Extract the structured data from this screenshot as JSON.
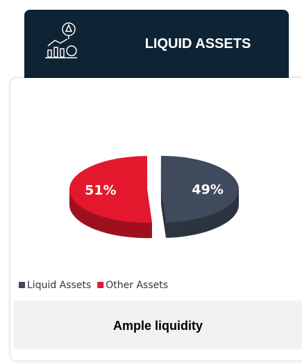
{
  "header": {
    "title": "LIQUID ASSETS"
  },
  "chart_data": {
    "type": "pie",
    "categories": [
      "Liquid Assets",
      "Other Assets"
    ],
    "values": [
      49,
      51
    ],
    "value_labels": [
      "49%",
      "51%"
    ],
    "colors": [
      "#3f4a5c",
      "#e3182c"
    ]
  },
  "footer": {
    "text": "Ample liquidity"
  }
}
